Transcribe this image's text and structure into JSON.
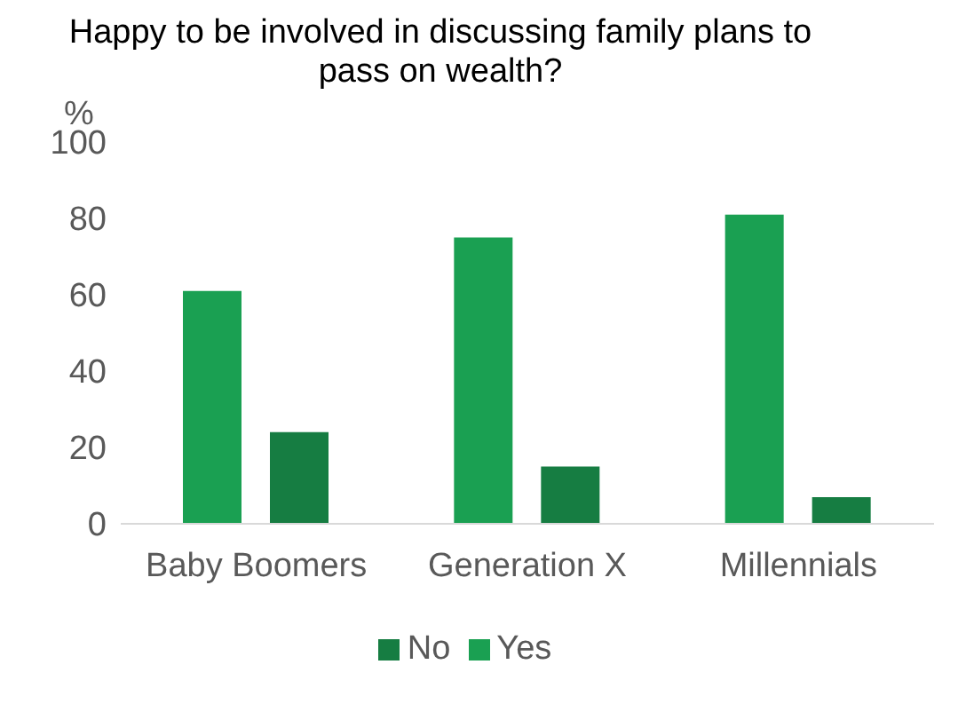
{
  "chart_data": {
    "type": "bar",
    "title": "Happy to be involved in discussing family plans to pass on wealth?",
    "ylabel": "%",
    "categories": [
      "Baby Boomers",
      "Generation X",
      "Millennials"
    ],
    "series": [
      {
        "name": "Yes",
        "color": "#1aa052",
        "values": [
          61,
          75,
          81
        ]
      },
      {
        "name": "No",
        "color": "#167d42",
        "values": [
          24,
          15,
          7
        ]
      }
    ],
    "ylim": [
      0,
      100
    ],
    "yticks": [
      0,
      20,
      40,
      60,
      80,
      100
    ],
    "grid": false,
    "legend": "bottom"
  }
}
